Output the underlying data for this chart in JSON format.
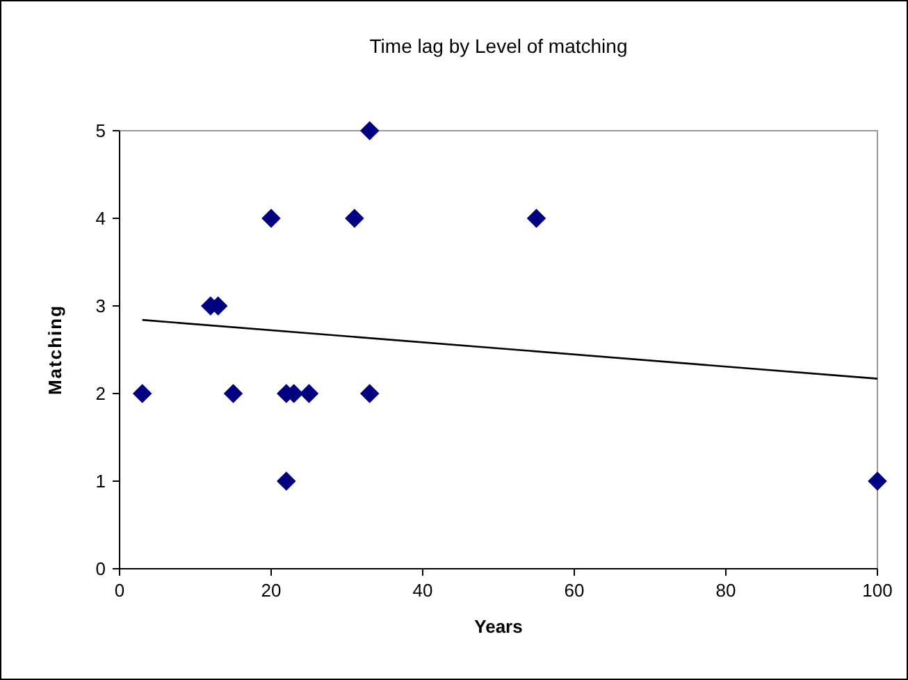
{
  "chart_data": {
    "type": "scatter",
    "title": "Time lag by Level of matching",
    "xlabel": "Years",
    "ylabel": "Matching",
    "xlim": [
      0,
      100
    ],
    "ylim": [
      0,
      5
    ],
    "xticks": [
      0,
      20,
      40,
      60,
      80,
      100
    ],
    "yticks": [
      0,
      1,
      2,
      3,
      4,
      5
    ],
    "marker": "diamond",
    "grid": false,
    "series": [
      {
        "color": "#000080",
        "x": [
          3,
          12,
          13,
          15,
          20,
          22,
          22,
          23,
          25,
          31,
          33,
          33,
          55,
          100
        ],
        "values": [
          2,
          3,
          3,
          2,
          4,
          2,
          1,
          2,
          2,
          4,
          5,
          2,
          4,
          1
        ]
      },
      {
        "type": "line",
        "color": "#000000",
        "x": [
          3,
          100
        ],
        "values": [
          2.84,
          2.17
        ],
        "marker": "none",
        "line_style": "solid"
      }
    ]
  }
}
